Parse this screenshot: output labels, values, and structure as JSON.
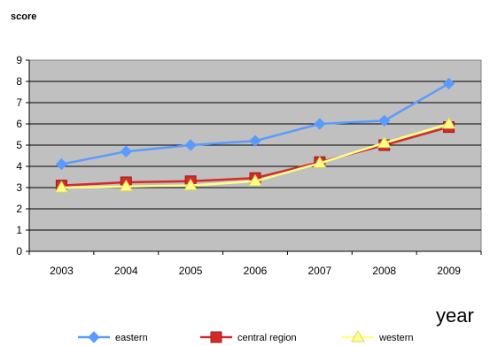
{
  "chart_data": {
    "type": "line",
    "ylabel": "score",
    "xlabel": "year",
    "categories": [
      "2003",
      "2004",
      "2005",
      "2006",
      "2007",
      "2008",
      "2009"
    ],
    "ylim": [
      0,
      9
    ],
    "yticks": [
      "0",
      "1",
      "2",
      "3",
      "4",
      "5",
      "6",
      "7",
      "8",
      "9"
    ],
    "grid": true,
    "legend_position": "bottom",
    "plot_background": "#c0c0c0",
    "series": [
      {
        "name": "eastern",
        "values": [
          4.1,
          4.7,
          5.0,
          5.2,
          6.0,
          6.15,
          7.9
        ],
        "color": "#5b9bff",
        "marker": "diamond"
      },
      {
        "name": "central region",
        "values": [
          3.1,
          3.25,
          3.3,
          3.45,
          4.2,
          5.0,
          5.85
        ],
        "color": "#d42a2a",
        "marker": "square"
      },
      {
        "name": "western",
        "values": [
          3.0,
          3.05,
          3.1,
          3.3,
          4.15,
          5.1,
          6.0
        ],
        "color": "#ffff88",
        "marker": "triangle"
      }
    ]
  }
}
